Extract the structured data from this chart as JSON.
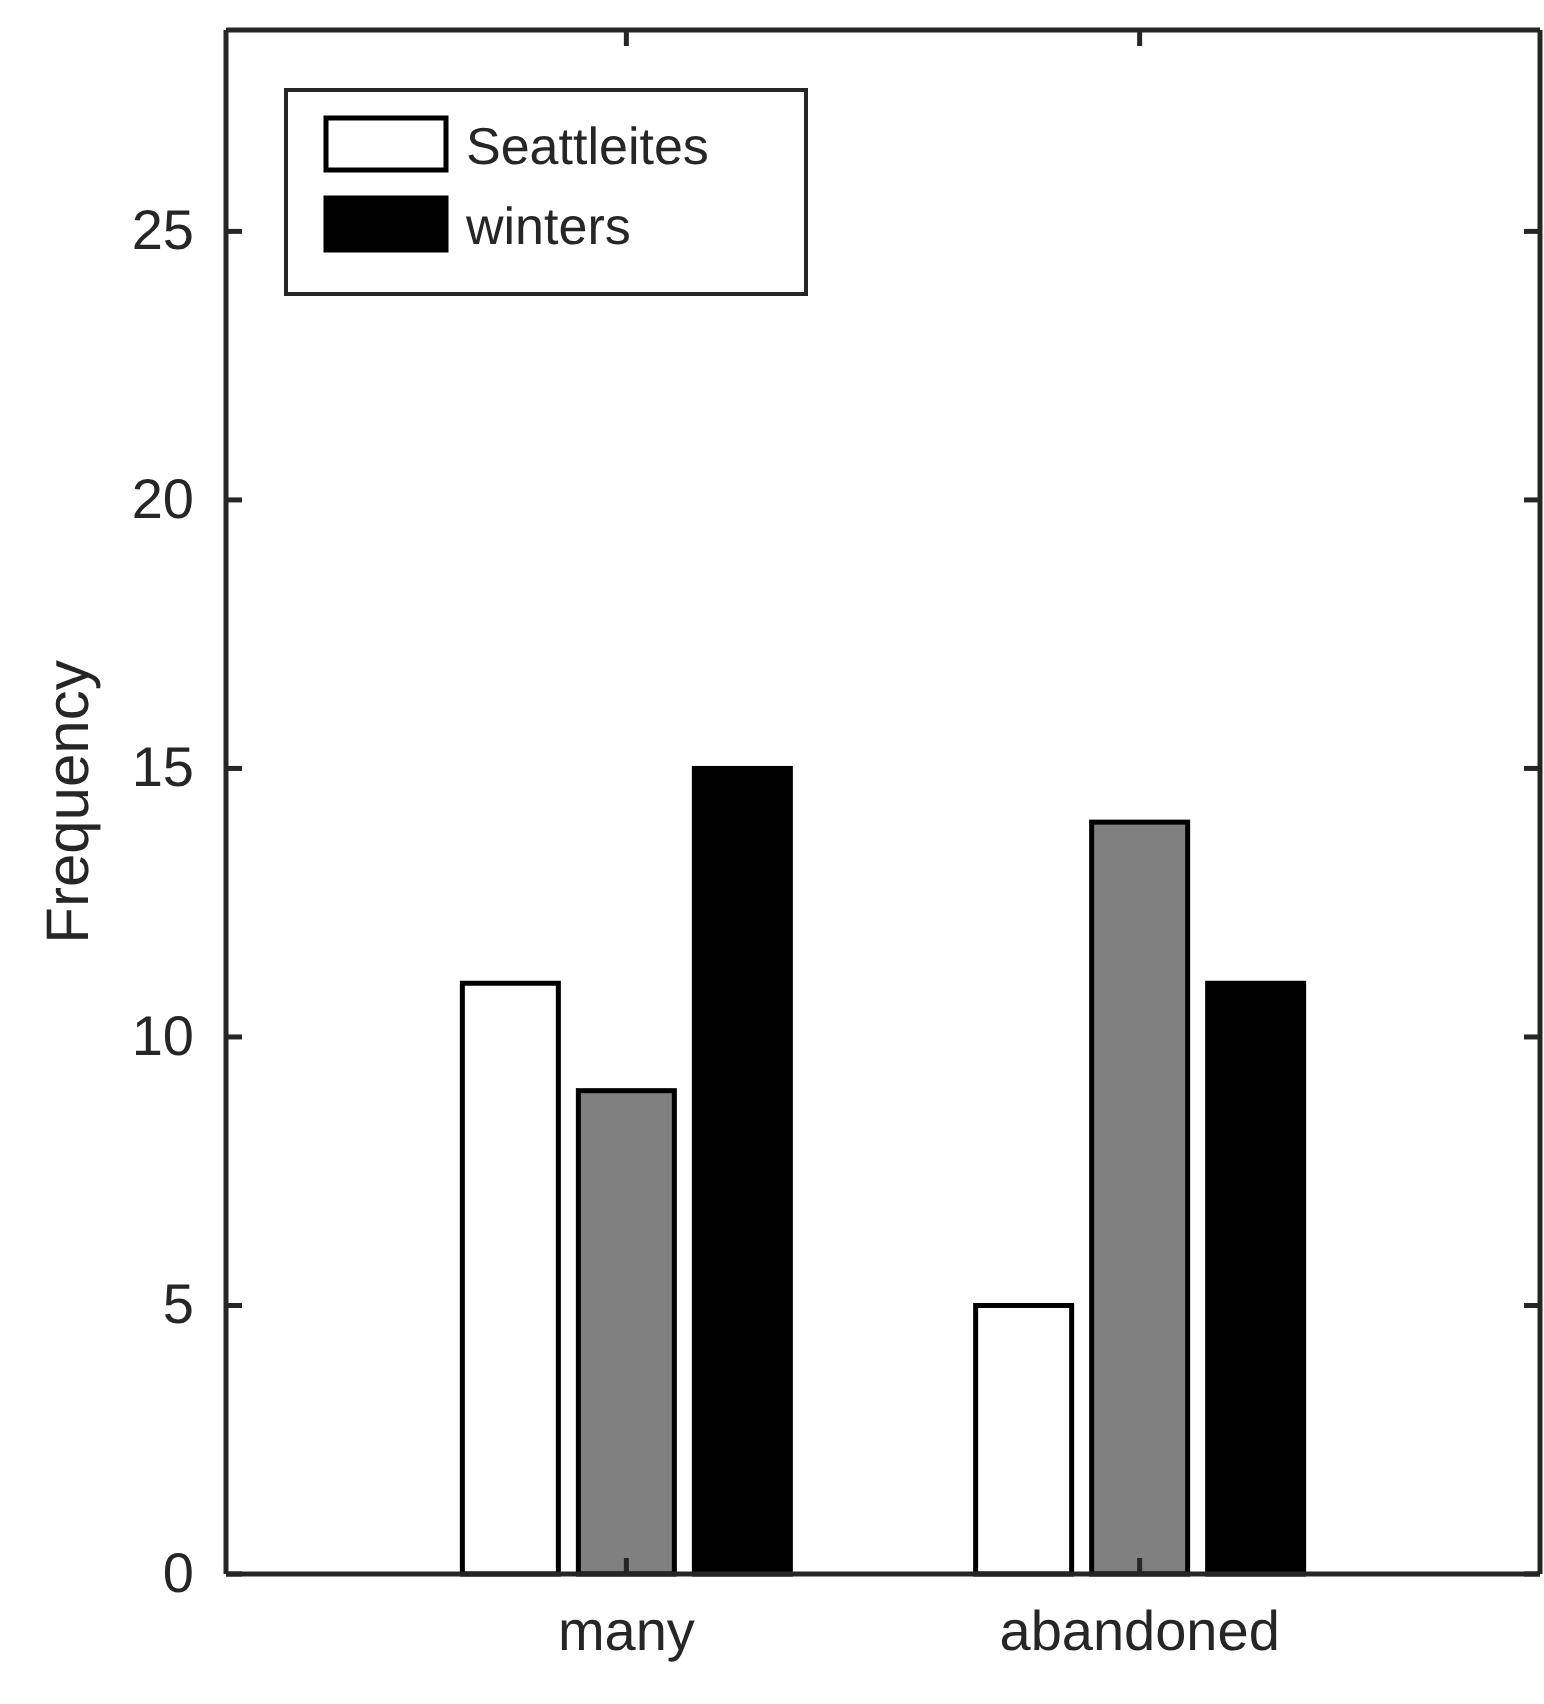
{
  "chart_data": {
    "type": "bar",
    "ylabel": "Frequency",
    "categories": [
      "many",
      "abandoned"
    ],
    "series": [
      {
        "name": "Seattleites",
        "color": "#ffffff",
        "values": [
          11,
          5
        ]
      },
      {
        "color": "#808080",
        "values": [
          9,
          14
        ]
      },
      {
        "name": "winters",
        "color": "#000000",
        "values": [
          15,
          11
        ]
      }
    ],
    "ylim": [
      0,
      28.75
    ],
    "yticks": [
      0,
      5,
      10,
      15,
      20,
      25
    ],
    "grid": false,
    "legend": "top left"
  }
}
